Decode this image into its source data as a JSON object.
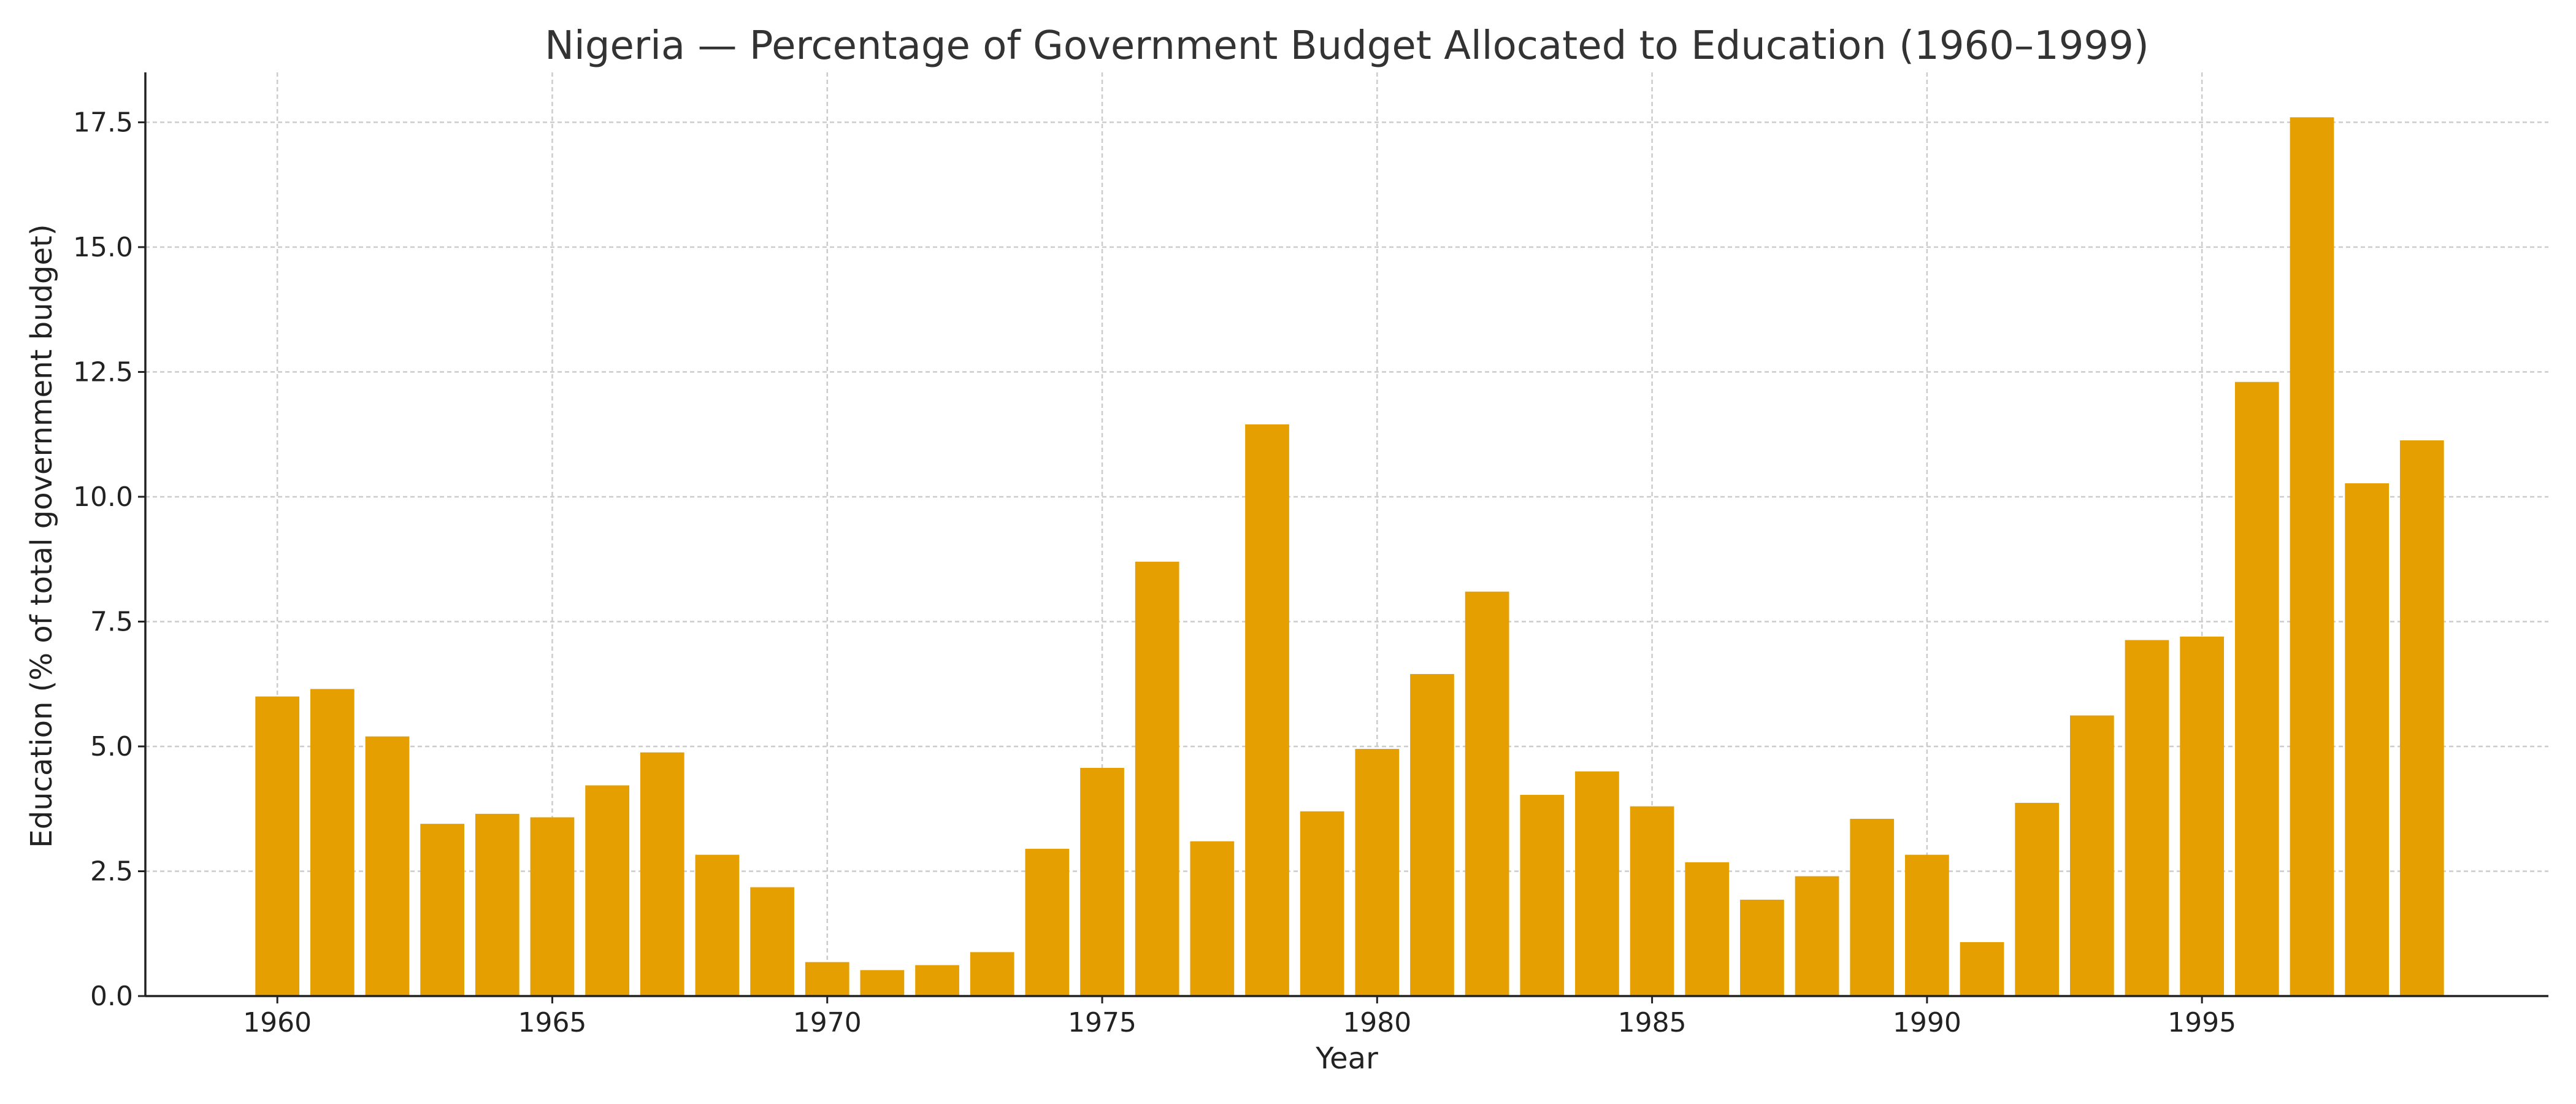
{
  "chart_data": {
    "type": "bar",
    "title": "Nigeria — Percentage of Government Budget Allocated to Education (1960–1999)",
    "xlabel": "Year",
    "ylabel": "Education (% of total government budget)",
    "bar_color": "#E69F00",
    "grid": true,
    "ylim": [
      0,
      18.5
    ],
    "xlim": [
      1957.6,
      2001.3
    ],
    "x_ticks": [
      1960,
      1965,
      1970,
      1975,
      1980,
      1985,
      1990,
      1995
    ],
    "y_ticks": [
      "0.0",
      "2.5",
      "5.0",
      "7.5",
      "10.0",
      "12.5",
      "15.0",
      "17.5"
    ],
    "categories": [
      1960,
      1961,
      1962,
      1963,
      1964,
      1965,
      1966,
      1967,
      1968,
      1969,
      1970,
      1971,
      1972,
      1973,
      1974,
      1975,
      1976,
      1977,
      1978,
      1979,
      1980,
      1981,
      1982,
      1983,
      1984,
      1985,
      1986,
      1987,
      1988,
      1989,
      1990,
      1991,
      1992,
      1993,
      1994,
      1995,
      1996,
      1997,
      1998,
      1999
    ],
    "values": [
      6.0,
      6.15,
      5.2,
      3.45,
      3.65,
      3.58,
      4.22,
      4.88,
      2.83,
      2.18,
      0.68,
      0.52,
      0.62,
      0.88,
      2.95,
      4.57,
      8.7,
      3.1,
      11.45,
      3.7,
      4.95,
      6.45,
      8.1,
      4.03,
      4.5,
      3.8,
      2.68,
      1.93,
      2.4,
      3.55,
      2.83,
      1.08,
      3.87,
      5.62,
      7.13,
      7.2,
      12.3,
      17.6,
      10.27,
      11.13
    ]
  }
}
